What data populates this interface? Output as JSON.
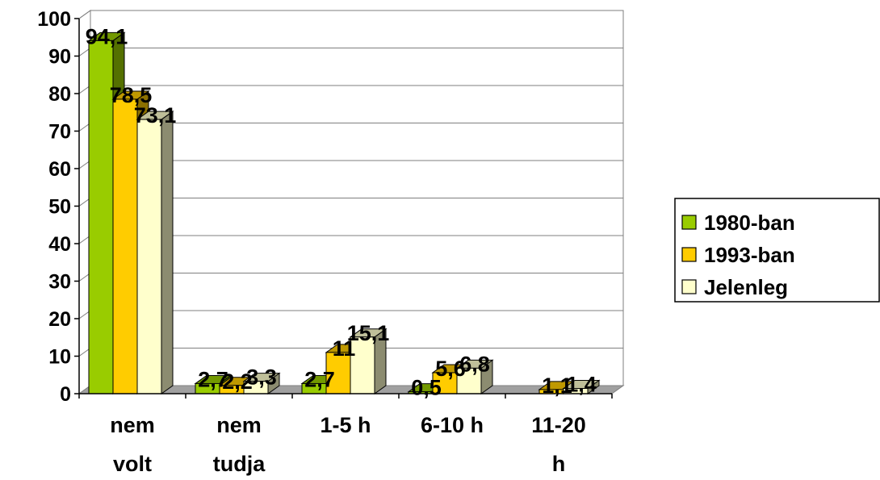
{
  "chart_data": {
    "type": "bar",
    "categories": [
      [
        "nem",
        "volt"
      ],
      [
        "nem",
        "tudja"
      ],
      [
        "1-5 h"
      ],
      [
        "6-10 h"
      ],
      [
        "11-20",
        "h"
      ]
    ],
    "series": [
      {
        "name": "1980-ban",
        "values": [
          94.1,
          2.7,
          2.7,
          0.5,
          0
        ],
        "labels": [
          "94,1",
          "2,7",
          "2,7",
          "0,5",
          ""
        ],
        "color": "#99cc00"
      },
      {
        "name": "1993-ban",
        "values": [
          78.5,
          2.2,
          11,
          5.6,
          1.1
        ],
        "labels": [
          "78,5",
          "2,2",
          "11",
          "5,6",
          "1,1"
        ],
        "color": "#ffcc00"
      },
      {
        "name": "Jelenleg",
        "values": [
          73.1,
          3.3,
          15.1,
          6.8,
          1.4
        ],
        "labels": [
          "73,1",
          "3,3",
          "15,1",
          "6,8",
          "1,4"
        ],
        "color": "#ffffcc"
      }
    ],
    "yticks": [
      "0",
      "10",
      "20",
      "30",
      "40",
      "50",
      "60",
      "70",
      "80",
      "90",
      "100"
    ],
    "ylim": [
      0,
      100
    ],
    "grid": true,
    "legend_position": "right",
    "style": "3d-clustered-column"
  }
}
